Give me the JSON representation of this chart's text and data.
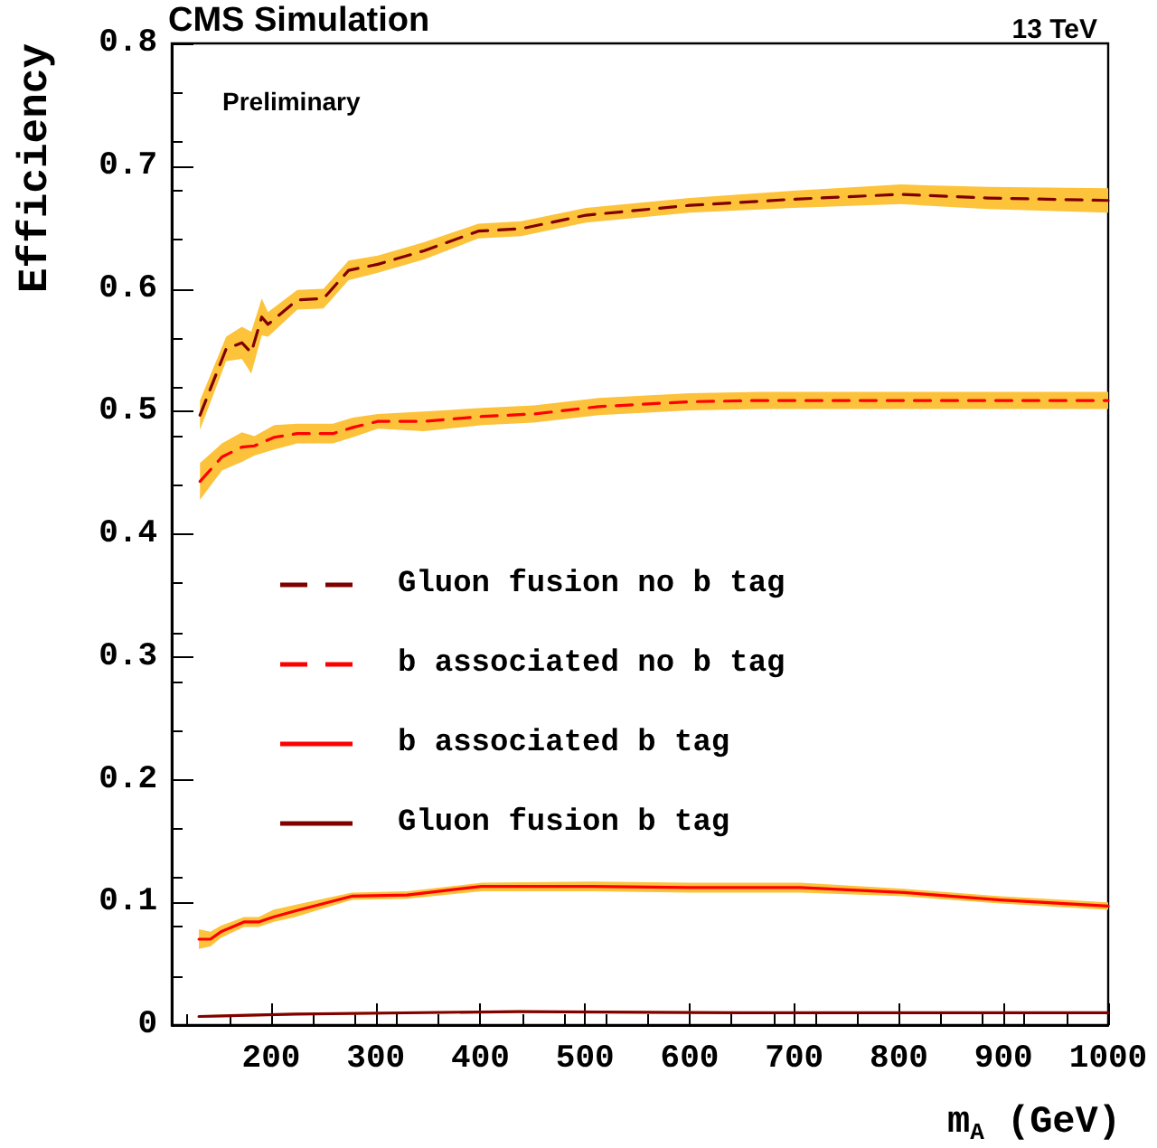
{
  "chart_data": {
    "type": "line",
    "title": "CMS Simulation",
    "subtitle": "13 TeV",
    "xlabel": "m$_{A}$ (GeV)",
    "ylabel": "Efficiency",
    "annotations": [
      "Preliminary"
    ],
    "xlim": [
      105,
      1000
    ],
    "xticks": [
      200,
      300,
      400,
      500,
      600,
      700,
      800,
      900,
      1000
    ],
    "ylim": [
      0,
      0.8
    ],
    "yticks": [
      0,
      0.1,
      0.2,
      0.3,
      0.4,
      0.5,
      0.6,
      0.7,
      0.8
    ],
    "grid": false,
    "legend": "left",
    "marker": "none",
    "series": [
      {
        "name": "Gluon fusion no b tag",
        "color": "#800000",
        "line_style": "dashed",
        "x": [
          132,
          157,
          172,
          181,
          191,
          197,
          225,
          250,
          274,
          302,
          346,
          398,
          439,
          501,
          600,
          699,
          802,
          885,
          1000
        ],
        "values": [
          0.497,
          0.551,
          0.556,
          0.548,
          0.577,
          0.571,
          0.591,
          0.592,
          0.615,
          0.62,
          0.631,
          0.647,
          0.649,
          0.66,
          0.668,
          0.673,
          0.677,
          0.674,
          0.672
        ],
        "lower": [
          0.485,
          0.541,
          0.543,
          0.531,
          0.562,
          0.561,
          0.583,
          0.584,
          0.607,
          0.613,
          0.624,
          0.641,
          0.643,
          0.654,
          0.662,
          0.666,
          0.669,
          0.665,
          0.662
        ],
        "upper": [
          0.509,
          0.561,
          0.569,
          0.565,
          0.592,
          0.581,
          0.599,
          0.6,
          0.623,
          0.627,
          0.638,
          0.653,
          0.655,
          0.666,
          0.674,
          0.68,
          0.685,
          0.683,
          0.682
        ]
      },
      {
        "name": "b associated no b tag",
        "color": "#ff0000",
        "line_style": "dashed",
        "x": [
          132,
          153,
          172,
          184,
          203,
          225,
          259,
          278,
          302,
          346,
          402,
          451,
          513,
          600,
          668,
          1000
        ],
        "values": [
          0.443,
          0.463,
          0.471,
          0.472,
          0.479,
          0.482,
          0.482,
          0.487,
          0.492,
          0.492,
          0.496,
          0.498,
          0.504,
          0.508,
          0.509,
          0.509
        ],
        "lower": [
          0.428,
          0.452,
          0.459,
          0.464,
          0.469,
          0.474,
          0.474,
          0.479,
          0.486,
          0.484,
          0.489,
          0.491,
          0.497,
          0.501,
          0.502,
          0.502
        ],
        "upper": [
          0.458,
          0.474,
          0.483,
          0.48,
          0.489,
          0.49,
          0.49,
          0.495,
          0.498,
          0.5,
          0.503,
          0.505,
          0.511,
          0.515,
          0.516,
          0.516
        ]
      },
      {
        "name": "b associated b tag",
        "color": "#ff0000",
        "line_style": "solid",
        "x": [
          131,
          142,
          152,
          174,
          188,
          202,
          223,
          277,
          330,
          401,
          507,
          599,
          706,
          805,
          897,
          1000
        ],
        "values": [
          0.07,
          0.07,
          0.076,
          0.084,
          0.084,
          0.088,
          0.093,
          0.105,
          0.106,
          0.113,
          0.113,
          0.112,
          0.112,
          0.108,
          0.102,
          0.097
        ],
        "lower": [
          0.062,
          0.064,
          0.071,
          0.08,
          0.08,
          0.084,
          0.088,
          0.102,
          0.103,
          0.109,
          0.109,
          0.108,
          0.108,
          0.105,
          0.099,
          0.094
        ],
        "upper": [
          0.078,
          0.076,
          0.081,
          0.088,
          0.088,
          0.094,
          0.098,
          0.108,
          0.109,
          0.116,
          0.117,
          0.116,
          0.116,
          0.111,
          0.105,
          0.1
        ]
      },
      {
        "name": "Gluon fusion b tag",
        "color": "#800000",
        "line_style": "solid",
        "x": [
          131,
          223,
          436,
          649,
          1000
        ],
        "values": [
          0.007,
          0.009,
          0.011,
          0.01,
          0.01
        ],
        "lower": [
          0.006,
          0.008,
          0.01,
          0.009,
          0.009
        ],
        "upper": [
          0.008,
          0.01,
          0.012,
          0.011,
          0.011
        ]
      }
    ]
  }
}
